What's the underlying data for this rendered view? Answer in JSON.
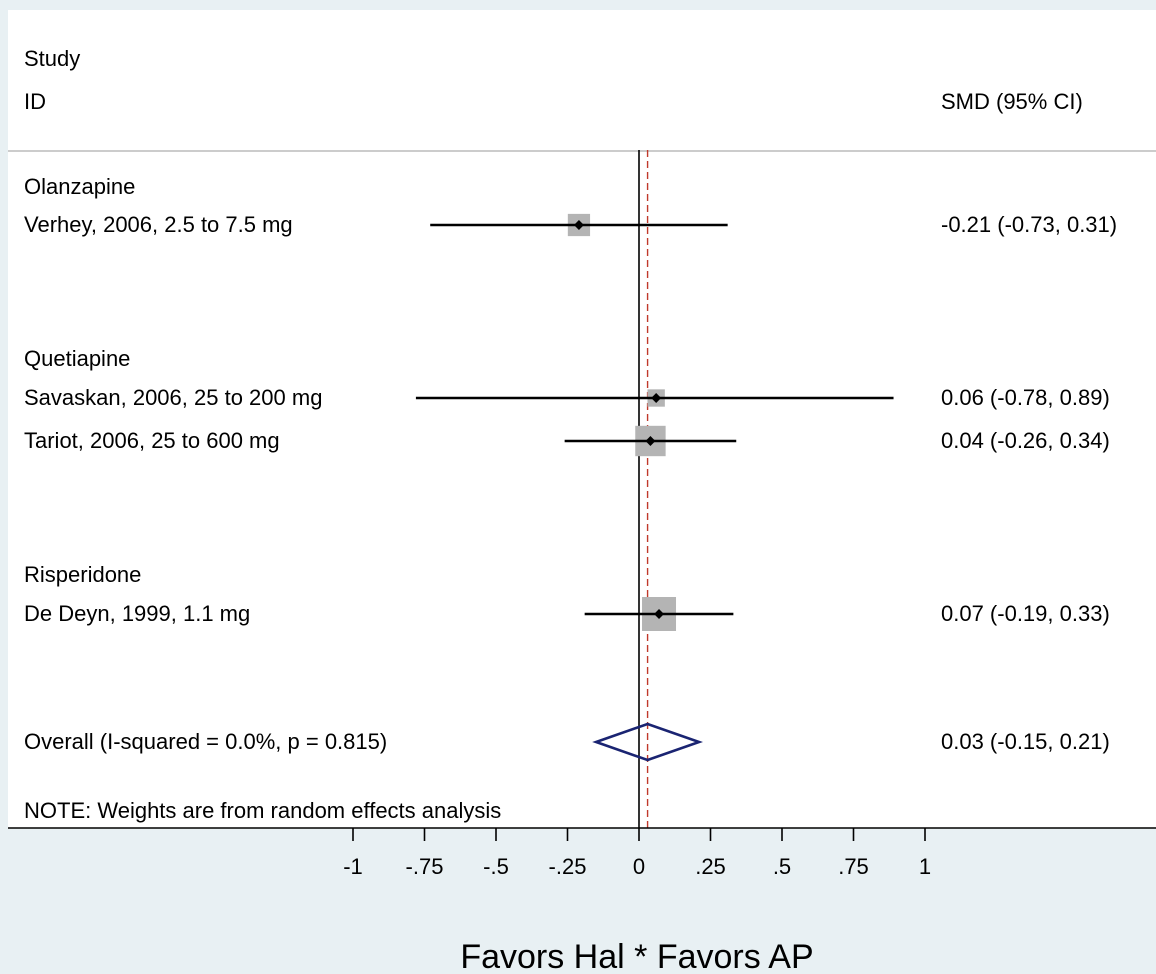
{
  "chart_data": {
    "type": "forest",
    "header": {
      "study_line1": "Study",
      "study_line2": "ID",
      "effect": "SMD (95% CI)"
    },
    "groups": [
      {
        "name": "Olanzapine",
        "studies": [
          {
            "label": "Verhey, 2006, 2.5 to 7.5 mg",
            "smd": -0.21,
            "lo": -0.73,
            "hi": 0.31,
            "ci_text": "-0.21 (-0.73, 0.31)",
            "weight": 0.3
          }
        ]
      },
      {
        "name": "Quetiapine",
        "studies": [
          {
            "label": "Savaskan, 2006, 25 to 200 mg",
            "smd": 0.06,
            "lo": -0.78,
            "hi": 0.89,
            "ci_text": "0.06 (-0.78, 0.89)",
            "weight": 0.13
          },
          {
            "label": "Tariot, 2006, 25 to 600 mg",
            "smd": 0.04,
            "lo": -0.26,
            "hi": 0.34,
            "ci_text": "0.04 (-0.26, 0.34)",
            "weight": 0.74
          }
        ]
      },
      {
        "name": "Risperidone",
        "studies": [
          {
            "label": "De Deyn, 1999, 1.1 mg",
            "smd": 0.07,
            "lo": -0.19,
            "hi": 0.33,
            "ci_text": "0.07 (-0.19, 0.33)",
            "weight": 1.0
          }
        ]
      }
    ],
    "overall": {
      "label": "Overall  (I-squared = 0.0%, p = 0.815)",
      "smd": 0.03,
      "lo": -0.15,
      "hi": 0.21,
      "ci_text": "0.03 (-0.15, 0.21)"
    },
    "note": "NOTE: Weights are from random effects analysis",
    "x_ticks": [
      -1,
      -0.75,
      -0.5,
      -0.25,
      0,
      0.25,
      0.5,
      0.75,
      1
    ],
    "x_tick_labels": [
      "-1",
      "-.75",
      "-.5",
      "-.25",
      "0",
      ".25",
      ".5",
      ".75",
      "1"
    ],
    "xlim": [
      -1,
      1
    ],
    "xlabel": "Favors Hal * Favors AP",
    "null_line": 0,
    "colors": {
      "plot_bg": "#ffffff",
      "outer_bg": "#e8f0f3",
      "box": "#b4b4b4",
      "diamond": "#1a2472",
      "ref_line": "#c0392b",
      "axis": "#000000"
    }
  }
}
